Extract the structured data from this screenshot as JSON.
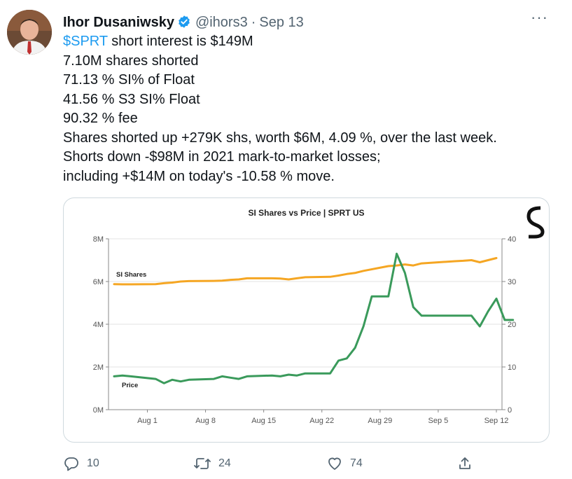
{
  "tweet": {
    "author_name": "Ihor Dusaniwsky",
    "handle": "@ihors3",
    "separator": "·",
    "date": "Sep 13",
    "more_label": "···",
    "cashtag": "$SPRT",
    "line1_rest": " short interest is $149M",
    "lines": [
      "7.10M shares shorted",
      "71.13 % SI% of Float",
      "41.56 % S3 SI% Float",
      "90.32 % fee",
      "Shares shorted up +279K shs, worth $6M, 4.09 %, over the last week.",
      "Shorts down -$98M in 2021 mark-to-market losses;",
      "including +$14M on today's -10.58 % move."
    ]
  },
  "actions": {
    "reply_count": "10",
    "retweet_count": "24",
    "like_count": "74"
  },
  "chart_data": {
    "type": "line",
    "title": "SI Shares vs Price | SPRT US",
    "x_ticks": [
      "Aug 1",
      "Aug 8",
      "Aug 15",
      "Aug 22",
      "Aug 29",
      "Sep 5",
      "Sep 12"
    ],
    "x_start": "Jul 28",
    "x_end": "Sep 12",
    "left_axis": {
      "ticks": [
        "0M",
        "2M",
        "4M",
        "6M",
        "8M"
      ],
      "range": [
        0,
        8
      ],
      "unit": "M"
    },
    "right_axis": {
      "ticks": [
        "0",
        "10",
        "20",
        "30",
        "40"
      ],
      "range": [
        0,
        40
      ]
    },
    "grid": "horizontal",
    "series": [
      {
        "name": "SI Shares",
        "axis": "left",
        "color": "#f5a623",
        "points": [
          [
            "Jul 28",
            5.88
          ],
          [
            "Jul 29",
            5.87
          ],
          [
            "Jul 30",
            5.87
          ],
          [
            "Aug 2",
            5.88
          ],
          [
            "Aug 3",
            5.92
          ],
          [
            "Aug 4",
            5.95
          ],
          [
            "Aug 5",
            6.0
          ],
          [
            "Aug 6",
            6.02
          ],
          [
            "Aug 9",
            6.03
          ],
          [
            "Aug 10",
            6.04
          ],
          [
            "Aug 11",
            6.08
          ],
          [
            "Aug 12",
            6.1
          ],
          [
            "Aug 13",
            6.15
          ],
          [
            "Aug 16",
            6.15
          ],
          [
            "Aug 17",
            6.14
          ],
          [
            "Aug 18",
            6.1
          ],
          [
            "Aug 19",
            6.15
          ],
          [
            "Aug 20",
            6.2
          ],
          [
            "Aug 23",
            6.22
          ],
          [
            "Aug 24",
            6.28
          ],
          [
            "Aug 25",
            6.35
          ],
          [
            "Aug 26",
            6.4
          ],
          [
            "Aug 27",
            6.5
          ],
          [
            "Aug 30",
            6.72
          ],
          [
            "Aug 31",
            6.75
          ],
          [
            "Sep 1",
            6.8
          ],
          [
            "Sep 2",
            6.75
          ],
          [
            "Sep 3",
            6.85
          ],
          [
            "Sep 7",
            6.95
          ],
          [
            "Sep 8",
            6.97
          ],
          [
            "Sep 9",
            7.0
          ],
          [
            "Sep 10",
            6.9
          ],
          [
            "Sep 12",
            7.1
          ]
        ]
      },
      {
        "name": "Price",
        "axis": "right",
        "color": "#3a9a5b",
        "points": [
          [
            "Jul 28",
            7.8
          ],
          [
            "Jul 29",
            8.0
          ],
          [
            "Jul 30",
            7.8
          ],
          [
            "Aug 2",
            7.2
          ],
          [
            "Aug 3",
            6.2
          ],
          [
            "Aug 4",
            7.0
          ],
          [
            "Aug 5",
            6.6
          ],
          [
            "Aug 6",
            7.0
          ],
          [
            "Aug 9",
            7.2
          ],
          [
            "Aug 10",
            7.8
          ],
          [
            "Aug 11",
            7.5
          ],
          [
            "Aug 12",
            7.2
          ],
          [
            "Aug 13",
            7.8
          ],
          [
            "Aug 16",
            8.0
          ],
          [
            "Aug 17",
            7.8
          ],
          [
            "Aug 18",
            8.2
          ],
          [
            "Aug 19",
            8.0
          ],
          [
            "Aug 20",
            8.5
          ],
          [
            "Aug 23",
            8.5
          ],
          [
            "Aug 24",
            11.5
          ],
          [
            "Aug 25",
            12.0
          ],
          [
            "Aug 26",
            14.5
          ],
          [
            "Aug 27",
            19.5
          ],
          [
            "Aug 28",
            26.5
          ],
          [
            "Aug 30",
            26.5
          ],
          [
            "Aug 31",
            36.5
          ],
          [
            "Sep 1",
            32.0
          ],
          [
            "Sep 2",
            24.0
          ],
          [
            "Sep 3",
            22.0
          ],
          [
            "Sep 7",
            22.0
          ],
          [
            "Sep 8",
            22.0
          ],
          [
            "Sep 9",
            22.0
          ],
          [
            "Sep 10",
            19.5
          ],
          [
            "Sep 11",
            23.0
          ],
          [
            "Sep 12",
            26.0
          ],
          [
            "Sep 13",
            21.0
          ],
          [
            "Sep 14",
            21.0
          ]
        ]
      }
    ],
    "series_labels": [
      "SI Shares",
      "Price"
    ],
    "logo_text": "S3"
  }
}
